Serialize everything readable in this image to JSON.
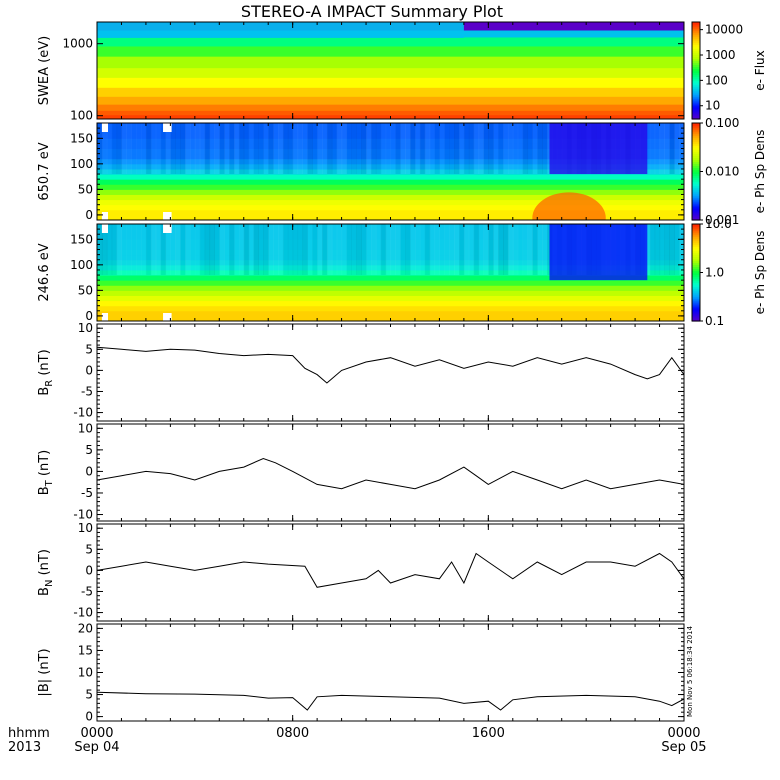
{
  "title": "STEREO-A IMPACT Summary Plot",
  "timestamp": "Mon Nov  5 06:18:34 2014",
  "time_axis": {
    "row1_label": "hhmm",
    "row2_label": "2013",
    "ticks": [
      {
        "hour": 0,
        "time": "0000",
        "date": "Sep 04"
      },
      {
        "hour": 8,
        "time": "0800",
        "date": ""
      },
      {
        "hour": 16,
        "time": "1600",
        "date": ""
      },
      {
        "hour": 24,
        "time": "0000",
        "date": "Sep 05"
      }
    ],
    "range_hours": [
      0,
      24
    ]
  },
  "colors": {
    "colormap": [
      "#5a00c8",
      "#0000ff",
      "#00a0ff",
      "#00ffd0",
      "#00ff40",
      "#b0ff00",
      "#ffff00",
      "#ffa000",
      "#ff2000"
    ],
    "line": "#000000",
    "gap": "#ffffff"
  },
  "chart_data": [
    {
      "type": "heatmap",
      "ylabel": "SWEA (eV)",
      "yscale": "log",
      "ylim": [
        90,
        2000
      ],
      "yticks": [
        {
          "v": 100,
          "label": "100"
        },
        {
          "v": 1000,
          "label": "1000"
        }
      ],
      "colorbar": {
        "label": "e- Flux",
        "scale": "log",
        "range": [
          3,
          20000
        ],
        "ticks": [
          {
            "v": 10,
            "label": "10"
          },
          {
            "v": 100,
            "label": "100"
          },
          {
            "v": 1000,
            "label": "1000"
          },
          {
            "v": 10000,
            "label": "10000"
          }
        ]
      },
      "levels_y": [
        2000,
        1500,
        1200,
        900,
        650,
        450,
        330,
        240,
        180,
        140,
        115,
        100,
        90
      ],
      "levels_value": [
        2,
        40,
        150,
        350,
        700,
        1200,
        2200,
        3800,
        6000,
        9000,
        12000,
        15000,
        14000
      ],
      "top_band_fill_hours": [
        0,
        15
      ]
    },
    {
      "type": "heatmap",
      "ylabel": "650.7 eV",
      "ylim": [
        -10,
        180
      ],
      "yticks": [
        {
          "v": 0,
          "label": "0"
        },
        {
          "v": 50,
          "label": "50"
        },
        {
          "v": 100,
          "label": "100"
        },
        {
          "v": 150,
          "label": "150"
        }
      ],
      "colorbar": {
        "label": "e- Ph Sp Dens",
        "scale": "log",
        "range": [
          0.001,
          0.1
        ],
        "ticks": [
          {
            "v": 0.001,
            "label": "0.001"
          },
          {
            "v": 0.01,
            "label": "0.010"
          },
          {
            "v": 0.1,
            "label": "0.100"
          }
        ]
      },
      "levels_y": [
        0,
        10,
        20,
        30,
        40,
        50,
        60,
        70,
        80,
        90,
        100,
        110,
        120,
        130,
        140,
        150,
        160,
        170,
        180
      ],
      "levels_value": [
        0.035,
        0.032,
        0.028,
        0.022,
        0.016,
        0.012,
        0.009,
        0.006,
        0.0042,
        0.0034,
        0.003,
        0.0027,
        0.0027,
        0.0026,
        0.0026,
        0.0025,
        0.0025,
        0.0025,
        0.0025
      ],
      "enhancement": {
        "hours": [
          17.8,
          20.8
        ],
        "pitch_max": 50,
        "value": 0.075
      },
      "depletion": {
        "hours": [
          18.5,
          22.5
        ],
        "pitch_min": 80,
        "value": 0.0014
      },
      "gaps": [
        [
          0.2,
          0.45
        ],
        [
          2.7,
          3.05
        ]
      ]
    },
    {
      "type": "heatmap",
      "ylabel": "246.6 eV",
      "ylim": [
        -10,
        180
      ],
      "yticks": [
        {
          "v": 0,
          "label": "0"
        },
        {
          "v": 50,
          "label": "50"
        },
        {
          "v": 100,
          "label": "100"
        },
        {
          "v": 150,
          "label": "150"
        }
      ],
      "colorbar": {
        "label": "e- Ph Sp Dens",
        "scale": "log",
        "range": [
          0.1,
          10
        ],
        "ticks": [
          {
            "v": 0.1,
            "label": "0.1"
          },
          {
            "v": 1,
            "label": "1.0"
          },
          {
            "v": 10,
            "label": "10.0"
          }
        ]
      },
      "levels_y": [
        0,
        10,
        20,
        30,
        40,
        50,
        60,
        70,
        80,
        90,
        100,
        110,
        120,
        130,
        140,
        150,
        160,
        170,
        180
      ],
      "levels_value": [
        4.2,
        3.8,
        3.3,
        2.6,
        2.0,
        1.6,
        1.2,
        0.85,
        0.62,
        0.5,
        0.45,
        0.42,
        0.42,
        0.41,
        0.41,
        0.4,
        0.4,
        0.4,
        0.4
      ],
      "depletion": {
        "hours": [
          18.5,
          22.5
        ],
        "pitch_min": 70,
        "value": 0.17
      },
      "gaps": [
        [
          0.2,
          0.45
        ],
        [
          2.7,
          3.05
        ]
      ]
    },
    {
      "type": "line",
      "ylabel": "BR (nT)",
      "ylabel_main": "B",
      "ylabel_sub": "R",
      "ylabel_unit": "(nT)",
      "ylim": [
        -12,
        11
      ],
      "yticks": [
        {
          "v": -10,
          "label": "-10"
        },
        {
          "v": -5,
          "label": "-5"
        },
        {
          "v": 0,
          "label": "0"
        },
        {
          "v": 5,
          "label": "5"
        },
        {
          "v": 10,
          "label": "10"
        }
      ],
      "x": [
        0,
        1,
        2,
        3,
        4,
        5,
        6,
        7,
        8,
        8.5,
        9,
        9.4,
        10,
        11,
        12,
        13,
        14,
        15,
        16,
        17,
        18,
        19,
        20,
        21,
        22,
        22.5,
        23,
        23.5,
        24
      ],
      "y": [
        5.5,
        5,
        4.5,
        5,
        4.8,
        4,
        3.5,
        3.8,
        3.5,
        0.5,
        -1,
        -3,
        0,
        2,
        3,
        1,
        2.5,
        0.5,
        2,
        1,
        3,
        1.5,
        3,
        1.5,
        -1,
        -2,
        -1,
        3,
        -1
      ]
    },
    {
      "type": "line",
      "ylabel": "BT (nT)",
      "ylabel_main": "B",
      "ylabel_sub": "T",
      "ylabel_unit": "(nT)",
      "ylim": [
        -11.5,
        11
      ],
      "yticks": [
        {
          "v": -10,
          "label": "-10"
        },
        {
          "v": -5,
          "label": "-5"
        },
        {
          "v": 0,
          "label": "0"
        },
        {
          "v": 5,
          "label": "5"
        },
        {
          "v": 10,
          "label": "10"
        }
      ],
      "x": [
        0,
        1,
        2,
        3,
        4,
        5,
        6,
        6.8,
        7.3,
        8,
        9,
        10,
        11,
        12,
        13,
        14,
        15,
        15.5,
        16,
        17,
        18,
        19,
        20,
        21,
        22,
        23,
        24
      ],
      "y": [
        -2,
        -1,
        0,
        -0.5,
        -2,
        0,
        1,
        3,
        2,
        0,
        -3,
        -4,
        -2,
        -3,
        -4,
        -2,
        1,
        -1,
        -3,
        0,
        -2,
        -4,
        -2,
        -4,
        -3,
        -2,
        -3
      ]
    },
    {
      "type": "line",
      "ylabel": "BN (nT)",
      "ylabel_main": "B",
      "ylabel_sub": "N",
      "ylabel_unit": "(nT)",
      "ylim": [
        -12,
        11
      ],
      "yticks": [
        {
          "v": -10,
          "label": "-10"
        },
        {
          "v": -5,
          "label": "-5"
        },
        {
          "v": 0,
          "label": "0"
        },
        {
          "v": 5,
          "label": "5"
        },
        {
          "v": 10,
          "label": "10"
        }
      ],
      "x": [
        0,
        1,
        2,
        3,
        4,
        5,
        6,
        7,
        8.5,
        9,
        10,
        11,
        11.5,
        12,
        13,
        14,
        14.5,
        15,
        15.5,
        16,
        17,
        18,
        19,
        20,
        21,
        22,
        23,
        23.5,
        24
      ],
      "y": [
        0,
        1,
        2,
        1,
        0,
        1,
        2,
        1.5,
        1,
        -4,
        -3,
        -2,
        0,
        -3,
        -1,
        -2,
        2,
        -3,
        4,
        2,
        -2,
        2,
        -1,
        2,
        2,
        1,
        4,
        2,
        -2
      ]
    },
    {
      "type": "line",
      "ylabel": "|B| (nT)",
      "ylim": [
        -1,
        21
      ],
      "yticks": [
        {
          "v": 0,
          "label": "0"
        },
        {
          "v": 5,
          "label": "5"
        },
        {
          "v": 10,
          "label": "10"
        },
        {
          "v": 15,
          "label": "15"
        },
        {
          "v": 20,
          "label": "20"
        }
      ],
      "x": [
        0,
        2,
        4,
        6,
        7,
        8,
        8.6,
        9,
        10,
        12,
        14,
        15,
        16,
        16.5,
        17,
        18,
        20,
        22,
        23,
        23.5,
        24
      ],
      "y": [
        5.5,
        5.2,
        5.1,
        4.8,
        4.2,
        4.3,
        1.5,
        4.5,
        4.8,
        4.5,
        4.2,
        3,
        3.5,
        1.5,
        3.8,
        4.5,
        4.8,
        4.5,
        3.5,
        2.5,
        4
      ]
    }
  ]
}
